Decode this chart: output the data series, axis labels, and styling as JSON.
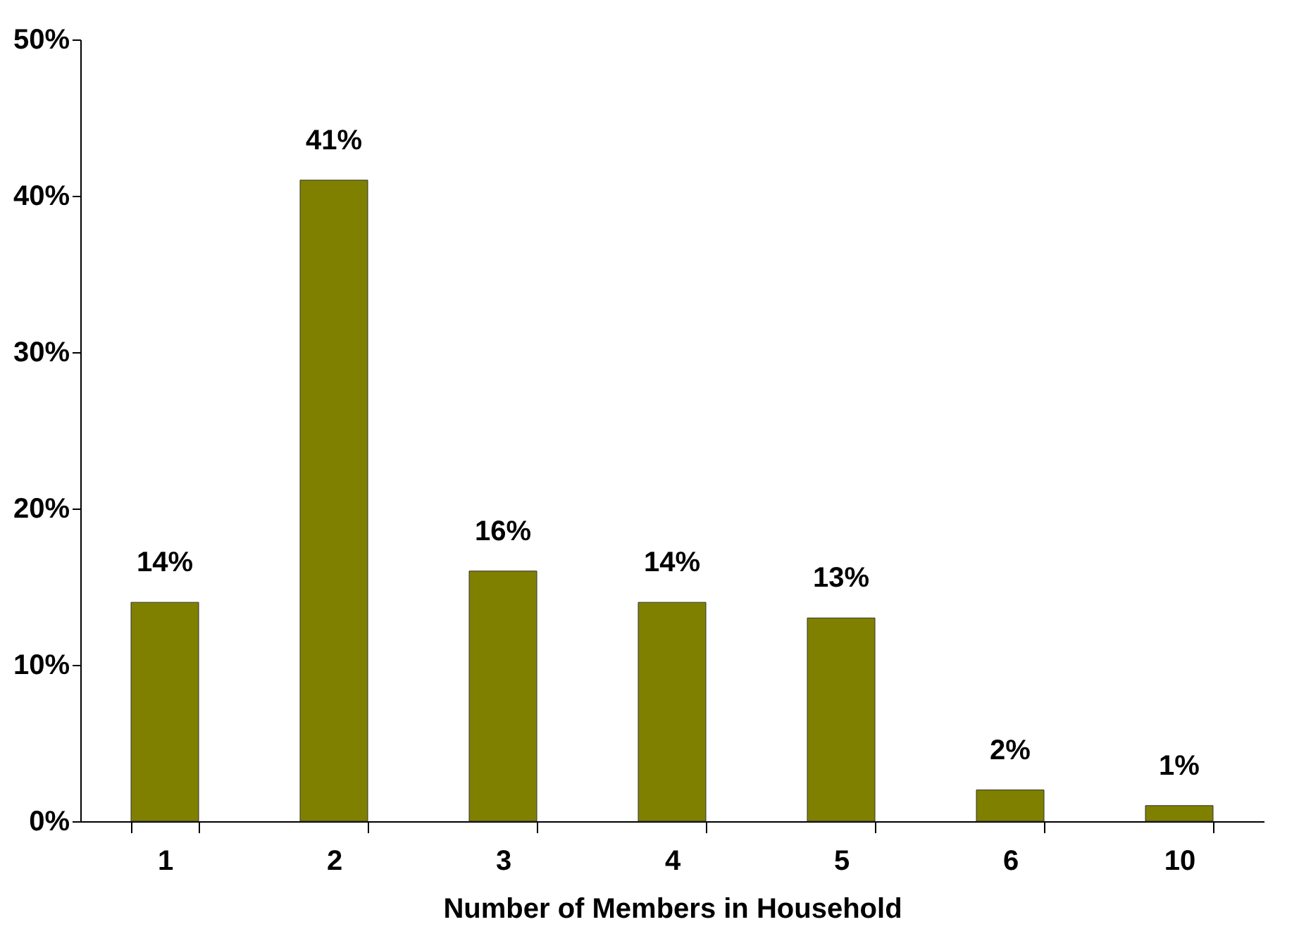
{
  "chart_data": {
    "type": "bar",
    "xlabel": "Number of Members in Household",
    "categories": [
      "1",
      "2",
      "3",
      "4",
      "5",
      "6",
      "10"
    ],
    "values": [
      14,
      41,
      16,
      14,
      13,
      2,
      1
    ],
    "value_labels": [
      "14%",
      "41%",
      "16%",
      "14%",
      "13%",
      "2%",
      "1%"
    ],
    "color": "#808000",
    "ylim": [
      0,
      50
    ],
    "yticks": [
      {
        "value": 0,
        "label": "0%"
      },
      {
        "value": 10,
        "label": "10%"
      },
      {
        "value": 20,
        "label": "20%"
      },
      {
        "value": 30,
        "label": "30%"
      },
      {
        "value": 40,
        "label": "40%"
      },
      {
        "value": 50,
        "label": "50%"
      }
    ],
    "grid": false
  }
}
